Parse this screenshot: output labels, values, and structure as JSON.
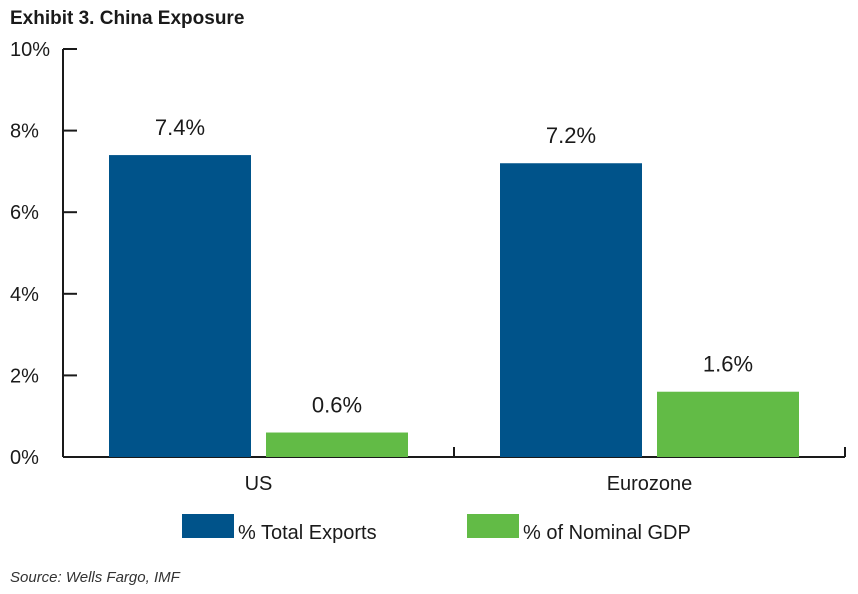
{
  "chart_data": {
    "type": "bar",
    "title": "Exhibit 3. China Exposure",
    "categories": [
      "US",
      "Eurozone"
    ],
    "series": [
      {
        "name": "% Total Exports",
        "values": [
          7.4,
          7.2
        ],
        "labels": [
          "7.4%",
          "7.2%"
        ],
        "color": "#00538A"
      },
      {
        "name": "% of Nominal GDP",
        "values": [
          0.6,
          1.6
        ],
        "labels": [
          "0.6%",
          "1.6%"
        ],
        "color": "#62BB46"
      }
    ],
    "ylim": [
      0,
      10
    ],
    "yticks": [
      0,
      2,
      4,
      6,
      8,
      10
    ],
    "ytick_labels": [
      "0%",
      "2%",
      "4%",
      "6%",
      "8%",
      "10%"
    ],
    "legend": "bottom",
    "grid": false
  },
  "source": "Source: Wells Fargo, IMF"
}
